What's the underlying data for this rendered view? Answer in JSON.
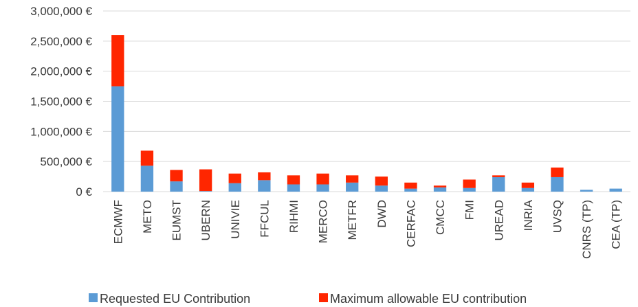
{
  "chart_data": {
    "type": "bar",
    "stacked": true,
    "categories": [
      "ECMWF",
      "METO",
      "EUMST",
      "UBERN",
      "UNIVIE",
      "FFCUL",
      "RIHMI",
      "MERCO",
      "METFR",
      "DWD",
      "CERFAC",
      "CMCC",
      "FMI",
      "UREAD",
      "INRIA",
      "UVSQ",
      "CNRS (TP)",
      "CEA (TP)"
    ],
    "series": [
      {
        "name": "Requested EU Contribution",
        "color": "#5b9bd5",
        "values": [
          1750000,
          430000,
          170000,
          10000,
          140000,
          190000,
          120000,
          120000,
          150000,
          100000,
          50000,
          70000,
          60000,
          240000,
          60000,
          240000,
          30000,
          50000
        ]
      },
      {
        "name": "Maximum allowable EU contribution",
        "color": "#ff2600",
        "values": [
          850000,
          250000,
          190000,
          360000,
          160000,
          130000,
          150000,
          180000,
          120000,
          150000,
          100000,
          30000,
          140000,
          30000,
          90000,
          160000,
          0,
          0
        ]
      }
    ],
    "yaxis": {
      "min": 0,
      "max": 3000000,
      "step": 500000,
      "tick_labels": [
        "0 €",
        "500,000 €",
        "1,000,000 €",
        "1,500,000 €",
        "2,000,000 €",
        "2,500,000 €",
        "3,000,000 €"
      ]
    },
    "grid": true,
    "legend_position": "bottom",
    "title": "",
    "xlabel": "",
    "ylabel": ""
  }
}
